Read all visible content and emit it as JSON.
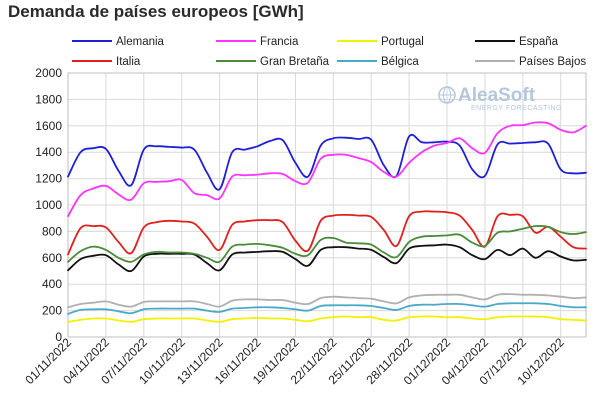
{
  "chart_data": {
    "type": "line",
    "title": "Demanda de países europeos [GWh]",
    "xlabel": "",
    "ylabel": "",
    "ylim": [
      0,
      2000
    ],
    "ytick_step": 200,
    "grid": true,
    "legend_position": "top",
    "x": [
      "01/11/2022",
      "02/11/2022",
      "03/11/2022",
      "04/11/2022",
      "05/11/2022",
      "06/11/2022",
      "07/11/2022",
      "08/11/2022",
      "09/11/2022",
      "10/11/2022",
      "11/11/2022",
      "12/11/2022",
      "13/11/2022",
      "14/11/2022",
      "15/11/2022",
      "16/11/2022",
      "17/11/2022",
      "18/11/2022",
      "19/11/2022",
      "20/11/2022",
      "21/11/2022",
      "22/11/2022",
      "23/11/2022",
      "24/11/2022",
      "25/11/2022",
      "26/11/2022",
      "27/11/2022",
      "28/11/2022",
      "29/11/2022",
      "30/11/2022",
      "01/12/2022",
      "02/12/2022",
      "03/12/2022",
      "04/12/2022",
      "05/12/2022",
      "06/12/2022",
      "07/12/2022",
      "08/12/2022",
      "09/12/2022",
      "10/12/2022",
      "11/12/2022",
      "12/12/2022"
    ],
    "x_tick_labels": [
      "01/11/2022",
      "04/11/2022",
      "07/11/2022",
      "10/11/2022",
      "13/11/2022",
      "16/11/2022",
      "19/11/2022",
      "22/11/2022",
      "25/11/2022",
      "28/11/2022",
      "01/12/2022",
      "04/12/2022",
      "07/12/2022",
      "10/12/2022"
    ],
    "series": [
      {
        "name": "Alemania",
        "color": "#1f1fd6",
        "values": [
          1215,
          1400,
          1430,
          1425,
          1260,
          1150,
          1420,
          1445,
          1440,
          1435,
          1420,
          1245,
          1120,
          1400,
          1420,
          1445,
          1485,
          1490,
          1320,
          1215,
          1450,
          1505,
          1510,
          1500,
          1495,
          1300,
          1220,
          1520,
          1475,
          1475,
          1480,
          1450,
          1270,
          1220,
          1460,
          1465,
          1470,
          1475,
          1465,
          1270,
          1240,
          1245
        ]
      },
      {
        "name": "Francia",
        "color": "#ff33ff",
        "values": [
          915,
          1075,
          1125,
          1145,
          1080,
          1040,
          1165,
          1175,
          1180,
          1190,
          1090,
          1075,
          1050,
          1215,
          1225,
          1230,
          1240,
          1235,
          1180,
          1170,
          1350,
          1380,
          1380,
          1355,
          1325,
          1250,
          1215,
          1320,
          1400,
          1450,
          1470,
          1505,
          1430,
          1395,
          1545,
          1600,
          1605,
          1625,
          1620,
          1570,
          1550,
          1600
        ]
      },
      {
        "name": "Portugal",
        "color": "#f2f200",
        "values": [
          115,
          130,
          140,
          140,
          125,
          115,
          135,
          140,
          140,
          140,
          140,
          125,
          115,
          135,
          140,
          145,
          140,
          140,
          130,
          120,
          140,
          150,
          155,
          150,
          150,
          130,
          125,
          150,
          155,
          155,
          150,
          150,
          140,
          135,
          150,
          155,
          155,
          155,
          150,
          135,
          130,
          125
        ]
      },
      {
        "name": "España",
        "color": "#111111",
        "values": [
          505,
          590,
          615,
          620,
          550,
          500,
          610,
          630,
          630,
          630,
          625,
          560,
          505,
          625,
          640,
          645,
          650,
          645,
          590,
          540,
          660,
          680,
          680,
          670,
          660,
          605,
          560,
          670,
          690,
          695,
          700,
          680,
          620,
          590,
          660,
          620,
          670,
          600,
          650,
          610,
          580,
          585
        ]
      },
      {
        "name": "Italia",
        "color": "#e0201c",
        "values": [
          625,
          825,
          840,
          830,
          720,
          635,
          830,
          870,
          880,
          875,
          860,
          760,
          660,
          850,
          875,
          885,
          885,
          870,
          730,
          655,
          880,
          920,
          925,
          920,
          910,
          810,
          690,
          915,
          950,
          950,
          945,
          920,
          810,
          685,
          915,
          925,
          915,
          790,
          835,
          760,
          680,
          670
        ]
      },
      {
        "name": "Gran Bretaña",
        "color": "#4a8c3a",
        "values": [
          570,
          650,
          685,
          660,
          600,
          570,
          625,
          645,
          640,
          640,
          630,
          600,
          570,
          685,
          700,
          705,
          695,
          675,
          630,
          620,
          735,
          750,
          715,
          710,
          700,
          640,
          605,
          720,
          760,
          765,
          770,
          775,
          715,
          690,
          790,
          800,
          820,
          840,
          835,
          795,
          780,
          795
        ]
      },
      {
        "name": "Bélgica",
        "color": "#4aa8c8",
        "values": [
          175,
          205,
          210,
          210,
          195,
          180,
          210,
          215,
          215,
          215,
          215,
          200,
          190,
          215,
          220,
          225,
          225,
          220,
          210,
          200,
          235,
          240,
          240,
          240,
          235,
          220,
          205,
          235,
          245,
          245,
          250,
          250,
          240,
          230,
          250,
          255,
          255,
          255,
          250,
          235,
          225,
          225
        ]
      },
      {
        "name": "Países Bajos",
        "color": "#b0b0b0",
        "values": [
          225,
          250,
          260,
          270,
          245,
          230,
          265,
          270,
          270,
          270,
          270,
          250,
          230,
          275,
          285,
          285,
          280,
          280,
          260,
          250,
          295,
          305,
          300,
          295,
          290,
          270,
          255,
          300,
          315,
          320,
          320,
          320,
          300,
          285,
          320,
          325,
          320,
          320,
          315,
          305,
          295,
          300
        ]
      }
    ]
  },
  "watermark": {
    "logo": "AleaSoft",
    "tagline": "ENERGY FORECASTING",
    "icon": "globe-icon"
  }
}
